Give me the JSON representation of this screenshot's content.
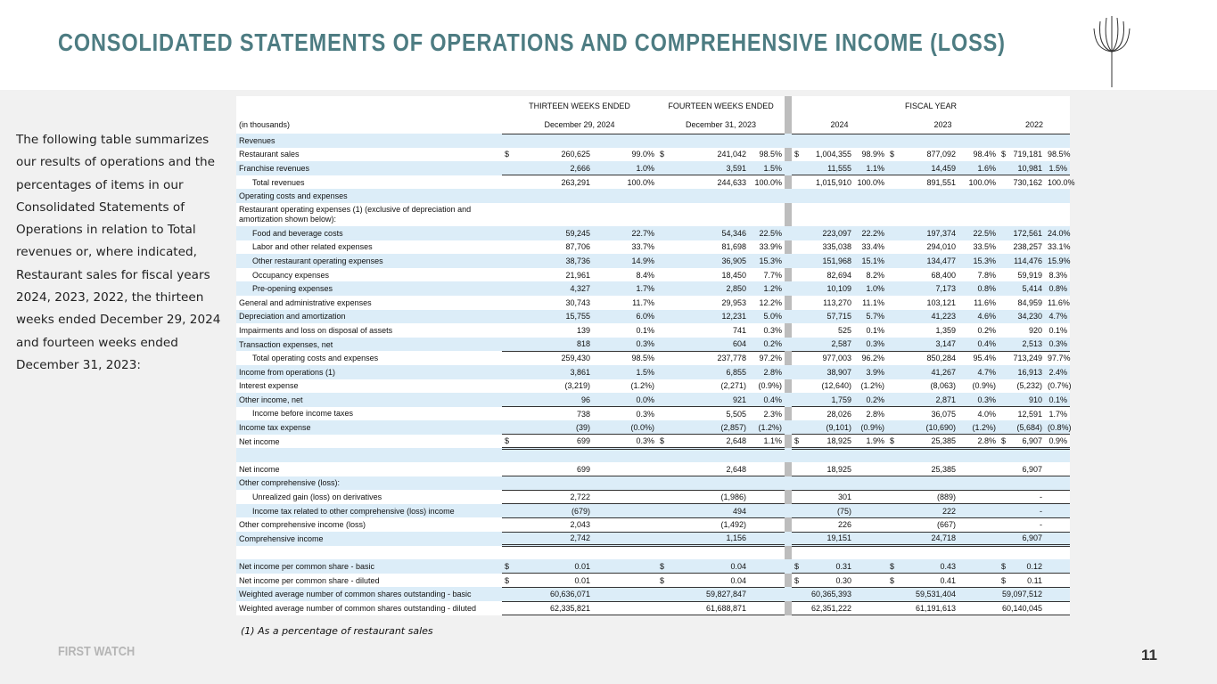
{
  "header": {
    "title": "CONSOLIDATED STATEMENTS OF OPERATIONS AND COMPREHENSIVE INCOME (LOSS)"
  },
  "intro": "The following table summarizes our results of operations and the percentages of items in our Consolidated Statements of Operations in relation to Total revenues or, where indicated, Restaurant sales for fiscal years 2024, 2023, 2022, the thirteen weeks ended December 29, 2024 and fourteen weeks ended December 31, 2023:",
  "table": {
    "groups": [
      "THIRTEEN WEEKS ENDED",
      "FOURTEEN WEEKS ENDED",
      "FISCAL YEAR"
    ],
    "unit": "(in thousands)",
    "periods": [
      "December 29, 2024",
      "December 31, 2023",
      "2024",
      "2023",
      "2022"
    ],
    "rows": [
      {
        "label": "Revenues",
        "cells": [
          null,
          null,
          null,
          null,
          null,
          null,
          null,
          null,
          null,
          null
        ]
      },
      {
        "label": "Restaurant sales",
        "cells": [
          [
            "$",
            "260,625"
          ],
          "99.0%",
          [
            "$",
            "241,042"
          ],
          "98.5%",
          [
            "$",
            "1,004,355"
          ],
          "98.9%",
          [
            "$",
            "877,092"
          ],
          "98.4%",
          [
            "$",
            "719,181"
          ],
          "98.5%"
        ]
      },
      {
        "label": "Franchise revenues",
        "cells": [
          "2,666",
          "1.0%",
          "3,591",
          "1.5%",
          "11,555",
          "1.1%",
          "14,459",
          "1.6%",
          "10,981",
          "1.5%"
        ]
      },
      {
        "label": "Total revenues",
        "cells": [
          "263,291",
          "100.0%",
          "244,633",
          "100.0%",
          "1,015,910",
          "100.0%",
          "891,551",
          "100.0%",
          "730,162",
          "100.0%"
        ]
      },
      {
        "label": "Operating costs and expenses",
        "cells": [
          null,
          null,
          null,
          null,
          null,
          null,
          null,
          null,
          null,
          null
        ]
      },
      {
        "label": "Restaurant operating expenses (1) (exclusive of depreciation and amortization shown below):",
        "cells": [
          null,
          null,
          null,
          null,
          null,
          null,
          null,
          null,
          null,
          null
        ]
      },
      {
        "label": "Food and beverage costs",
        "cells": [
          "59,245",
          "22.7%",
          "54,346",
          "22.5%",
          "223,097",
          "22.2%",
          "197,374",
          "22.5%",
          "172,561",
          "24.0%"
        ]
      },
      {
        "label": "Labor and other related expenses",
        "cells": [
          "87,706",
          "33.7%",
          "81,698",
          "33.9%",
          "335,038",
          "33.4%",
          "294,010",
          "33.5%",
          "238,257",
          "33.1%"
        ]
      },
      {
        "label": "Other restaurant operating expenses",
        "cells": [
          "38,736",
          "14.9%",
          "36,905",
          "15.3%",
          "151,968",
          "15.1%",
          "134,477",
          "15.3%",
          "114,476",
          "15.9%"
        ]
      },
      {
        "label": "Occupancy expenses",
        "cells": [
          "21,961",
          "8.4%",
          "18,450",
          "7.7%",
          "82,694",
          "8.2%",
          "68,400",
          "7.8%",
          "59,919",
          "8.3%"
        ]
      },
      {
        "label": "Pre-opening expenses",
        "cells": [
          "4,327",
          "1.7%",
          "2,850",
          "1.2%",
          "10,109",
          "1.0%",
          "7,173",
          "0.8%",
          "5,414",
          "0.8%"
        ]
      },
      {
        "label": "General and administrative expenses",
        "cells": [
          "30,743",
          "11.7%",
          "29,953",
          "12.2%",
          "113,270",
          "11.1%",
          "103,121",
          "11.6%",
          "84,959",
          "11.6%"
        ]
      },
      {
        "label": "Depreciation and amortization",
        "cells": [
          "15,755",
          "6.0%",
          "12,231",
          "5.0%",
          "57,715",
          "5.7%",
          "41,223",
          "4.6%",
          "34,230",
          "4.7%"
        ]
      },
      {
        "label": "Impairments and loss on disposal of assets",
        "cells": [
          "139",
          "0.1%",
          "741",
          "0.3%",
          "525",
          "0.1%",
          "1,359",
          "0.2%",
          "920",
          "0.1%"
        ]
      },
      {
        "label": "Transaction expenses, net",
        "cells": [
          "818",
          "0.3%",
          "604",
          "0.2%",
          "2,587",
          "0.3%",
          "3,147",
          "0.4%",
          "2,513",
          "0.3%"
        ]
      },
      {
        "label": "Total operating costs and expenses",
        "cells": [
          "259,430",
          "98.5%",
          "237,778",
          "97.2%",
          "977,003",
          "96.2%",
          "850,284",
          "95.4%",
          "713,249",
          "97.7%"
        ]
      },
      {
        "label": "Income from operations (1)",
        "cells": [
          "3,861",
          "1.5%",
          "6,855",
          "2.8%",
          "38,907",
          "3.9%",
          "41,267",
          "4.7%",
          "16,913",
          "2.4%"
        ]
      },
      {
        "label": "Interest expense",
        "cells": [
          "(3,219)",
          "(1.2%)",
          "(2,271)",
          "(0.9%)",
          "(12,640)",
          "(1.2%)",
          "(8,063)",
          "(0.9%)",
          "(5,232)",
          "(0.7%)"
        ]
      },
      {
        "label": "Other income, net",
        "cells": [
          "96",
          "0.0%",
          "921",
          "0.4%",
          "1,759",
          "0.2%",
          "2,871",
          "0.3%",
          "910",
          "0.1%"
        ]
      },
      {
        "label": "Income before income taxes",
        "cells": [
          "738",
          "0.3%",
          "5,505",
          "2.3%",
          "28,026",
          "2.8%",
          "36,075",
          "4.0%",
          "12,591",
          "1.7%"
        ]
      },
      {
        "label": "Income tax expense",
        "cells": [
          "(39)",
          "(0.0%)",
          "(2,857)",
          "(1.2%)",
          "(9,101)",
          "(0.9%)",
          "(10,690)",
          "(1.2%)",
          "(5,684)",
          "(0.8%)"
        ]
      },
      {
        "label": "Net income",
        "cells": [
          [
            "$",
            "699"
          ],
          "0.3%",
          [
            "$",
            "2,648"
          ],
          "1.1%",
          [
            "$",
            "18,925"
          ],
          "1.9%",
          [
            "$",
            "25,385"
          ],
          "2.8%",
          [
            "$",
            "6,907"
          ],
          "0.9%"
        ]
      },
      {
        "label": "Net income",
        "cells": [
          "699",
          null,
          "2,648",
          null,
          "18,925",
          null,
          "25,385",
          null,
          "6,907",
          null
        ]
      },
      {
        "label": "Other comprehensive (loss):",
        "cells": [
          null,
          null,
          null,
          null,
          null,
          null,
          null,
          null,
          null,
          null
        ]
      },
      {
        "label": "Unrealized gain (loss) on derivatives",
        "cells": [
          "2,722",
          null,
          "(1,986)",
          null,
          "301",
          null,
          "(889)",
          null,
          "-",
          null
        ]
      },
      {
        "label": "Income tax related to other comprehensive (loss) income",
        "cells": [
          "(679)",
          null,
          "494",
          null,
          "(75)",
          null,
          "222",
          null,
          "-",
          null
        ]
      },
      {
        "label": "Other comprehensive income (loss)",
        "cells": [
          "2,043",
          null,
          "(1,492)",
          null,
          "226",
          null,
          "(667)",
          null,
          "-",
          null
        ]
      },
      {
        "label": "Comprehensive income",
        "cells": [
          "2,742",
          null,
          "1,156",
          null,
          "19,151",
          null,
          "24,718",
          null,
          "6,907",
          null
        ]
      },
      {
        "label": "Net income per common share - basic",
        "cells": [
          [
            "$",
            "0.01"
          ],
          null,
          [
            "$",
            "0.04"
          ],
          null,
          [
            "$",
            "0.31"
          ],
          null,
          [
            "$",
            "0.43"
          ],
          null,
          [
            "$",
            "0.12"
          ],
          null
        ]
      },
      {
        "label": "Net income per common share - diluted",
        "cells": [
          [
            "$",
            "0.01"
          ],
          null,
          [
            "$",
            "0.04"
          ],
          null,
          [
            "$",
            "0.30"
          ],
          null,
          [
            "$",
            "0.41"
          ],
          null,
          [
            "$",
            "0.11"
          ],
          null
        ]
      },
      {
        "label": "Weighted average number of common shares outstanding -  basic",
        "cells": [
          "60,636,071",
          null,
          "59,827,847",
          null,
          "60,365,393",
          null,
          "59,531,404",
          null,
          "59,097,512",
          null
        ]
      },
      {
        "label": "Weighted average number of common shares outstanding - diluted",
        "cells": [
          "62,335,821",
          null,
          "61,688,871",
          null,
          "62,351,222",
          null,
          "61,191,613",
          null,
          "60,140,045",
          null
        ]
      }
    ]
  },
  "footnote": "(1) As a percentage of restaurant sales",
  "footer": {
    "brand": "FIRST WATCH",
    "page": "11"
  }
}
